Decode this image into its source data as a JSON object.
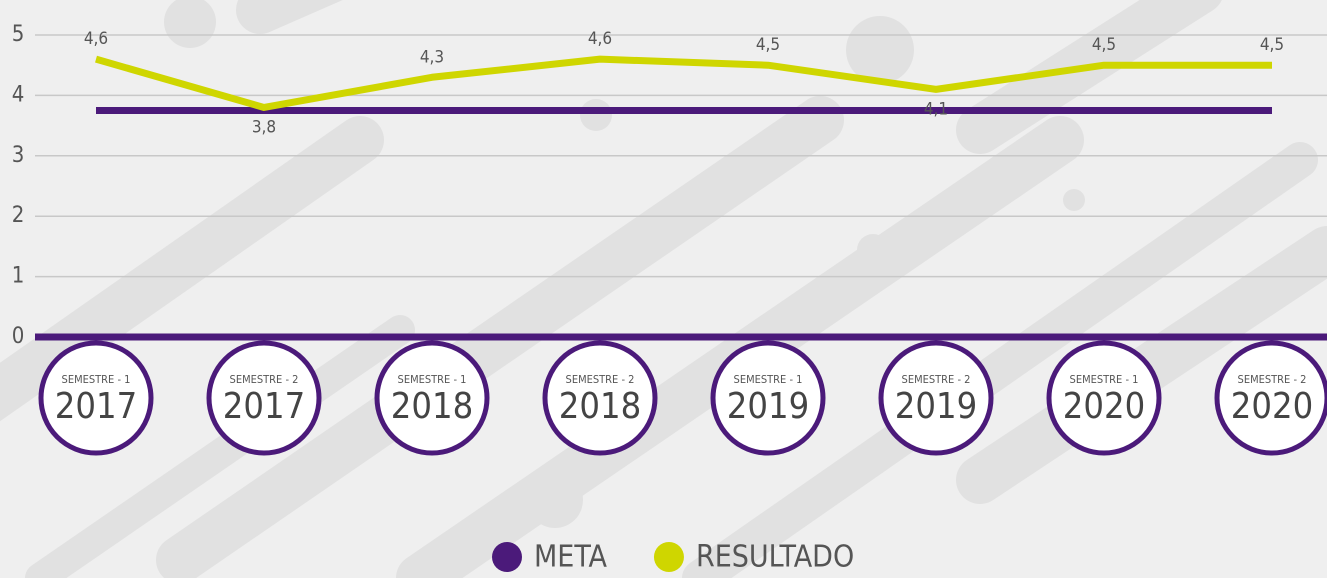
{
  "chart_data": {
    "type": "line",
    "categories": [
      {
        "semester": "SEMESTRE - 1",
        "year": "2017"
      },
      {
        "semester": "SEMESTRE - 2",
        "year": "2017"
      },
      {
        "semester": "SEMESTRE - 1",
        "year": "2018"
      },
      {
        "semester": "SEMESTRE - 2",
        "year": "2018"
      },
      {
        "semester": "SEMESTRE - 1",
        "year": "2019"
      },
      {
        "semester": "SEMESTRE - 2",
        "year": "2019"
      },
      {
        "semester": "SEMESTRE - 1",
        "year": "2020"
      },
      {
        "semester": "SEMESTRE - 2",
        "year": "2020"
      }
    ],
    "series": [
      {
        "name": "META",
        "color": "#4b1a7a",
        "values": [
          3.75,
          3.75,
          3.75,
          3.75,
          3.75,
          3.75,
          3.75,
          3.75
        ]
      },
      {
        "name": "RESULTADO",
        "color": "#cfd600",
        "values": [
          4.6,
          3.8,
          4.3,
          4.6,
          4.5,
          4.1,
          4.5,
          4.5
        ],
        "value_labels": [
          "4,6",
          "3,8",
          "4,3",
          "4,6",
          "4,5",
          "4,1",
          "4,5",
          "4,5"
        ]
      }
    ],
    "ylim": [
      0,
      5
    ],
    "yticks": [
      0,
      1,
      2,
      3,
      4,
      5
    ],
    "grid": true,
    "legend": "bottom"
  }
}
